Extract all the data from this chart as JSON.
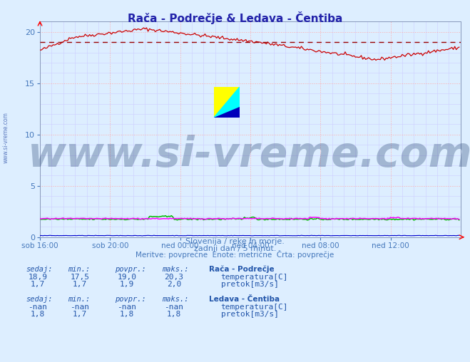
{
  "title": "Rača - Podrečje & Ledava - Čentiba",
  "title_color": "#2222aa",
  "bg_color": "#ddeeff",
  "plot_bg_color": "#ddeeff",
  "grid_color_major": "#ffaaaa",
  "grid_color_minor": "#ccccff",
  "ylim": [
    0,
    21
  ],
  "yticks": [
    0,
    5,
    10,
    15,
    20
  ],
  "xlim": [
    0,
    288
  ],
  "xlabel_ticks": [
    0,
    48,
    96,
    144,
    192,
    240
  ],
  "xlabel_labels": [
    "sob 16:00",
    "sob 20:00",
    "ned 00:00",
    "ned 04:00",
    "ned 08:00",
    "ned 12:00"
  ],
  "avg_line_value": 19.0,
  "avg_line_color": "#990000",
  "line1_color": "#cc0000",
  "line2_color": "#00bb00",
  "line3_color": "#0000cc",
  "line4_color": "#ff00ff",
  "watermark_text": "www.si-vreme.com",
  "watermark_color": "#1a3a6a",
  "watermark_alpha": 0.3,
  "watermark_fontsize": 42,
  "subtitle1": "Slovenija / reke in morje.",
  "subtitle2": "zadnji dan / 5 minut.",
  "subtitle3": "Meritve: povprečne  Enote: metrične  Črta: povprečje",
  "subtitle_color": "#4477bb",
  "table_header_color": "#2255aa",
  "station1_name": "Rača - Podrečje",
  "station1_temp_sedaj": "18,9",
  "station1_temp_min": "17,5",
  "station1_temp_povpr": "19,0",
  "station1_temp_maks": "20,3",
  "station1_pretok_sedaj": "1,7",
  "station1_pretok_min": "1,7",
  "station1_pretok_povpr": "1,9",
  "station1_pretok_maks": "2,0",
  "station2_name": "Ledava - Čentiba",
  "station2_temp_sedaj": "-nan",
  "station2_temp_min": "-nan",
  "station2_temp_povpr": "-nan",
  "station2_temp_maks": "-nan",
  "station2_pretok_sedaj": "1,8",
  "station2_pretok_min": "1,7",
  "station2_pretok_povpr": "1,8",
  "station2_pretok_maks": "1,8",
  "sidebar_text": "www.si-vreme.com",
  "sidebar_color": "#3355aa"
}
